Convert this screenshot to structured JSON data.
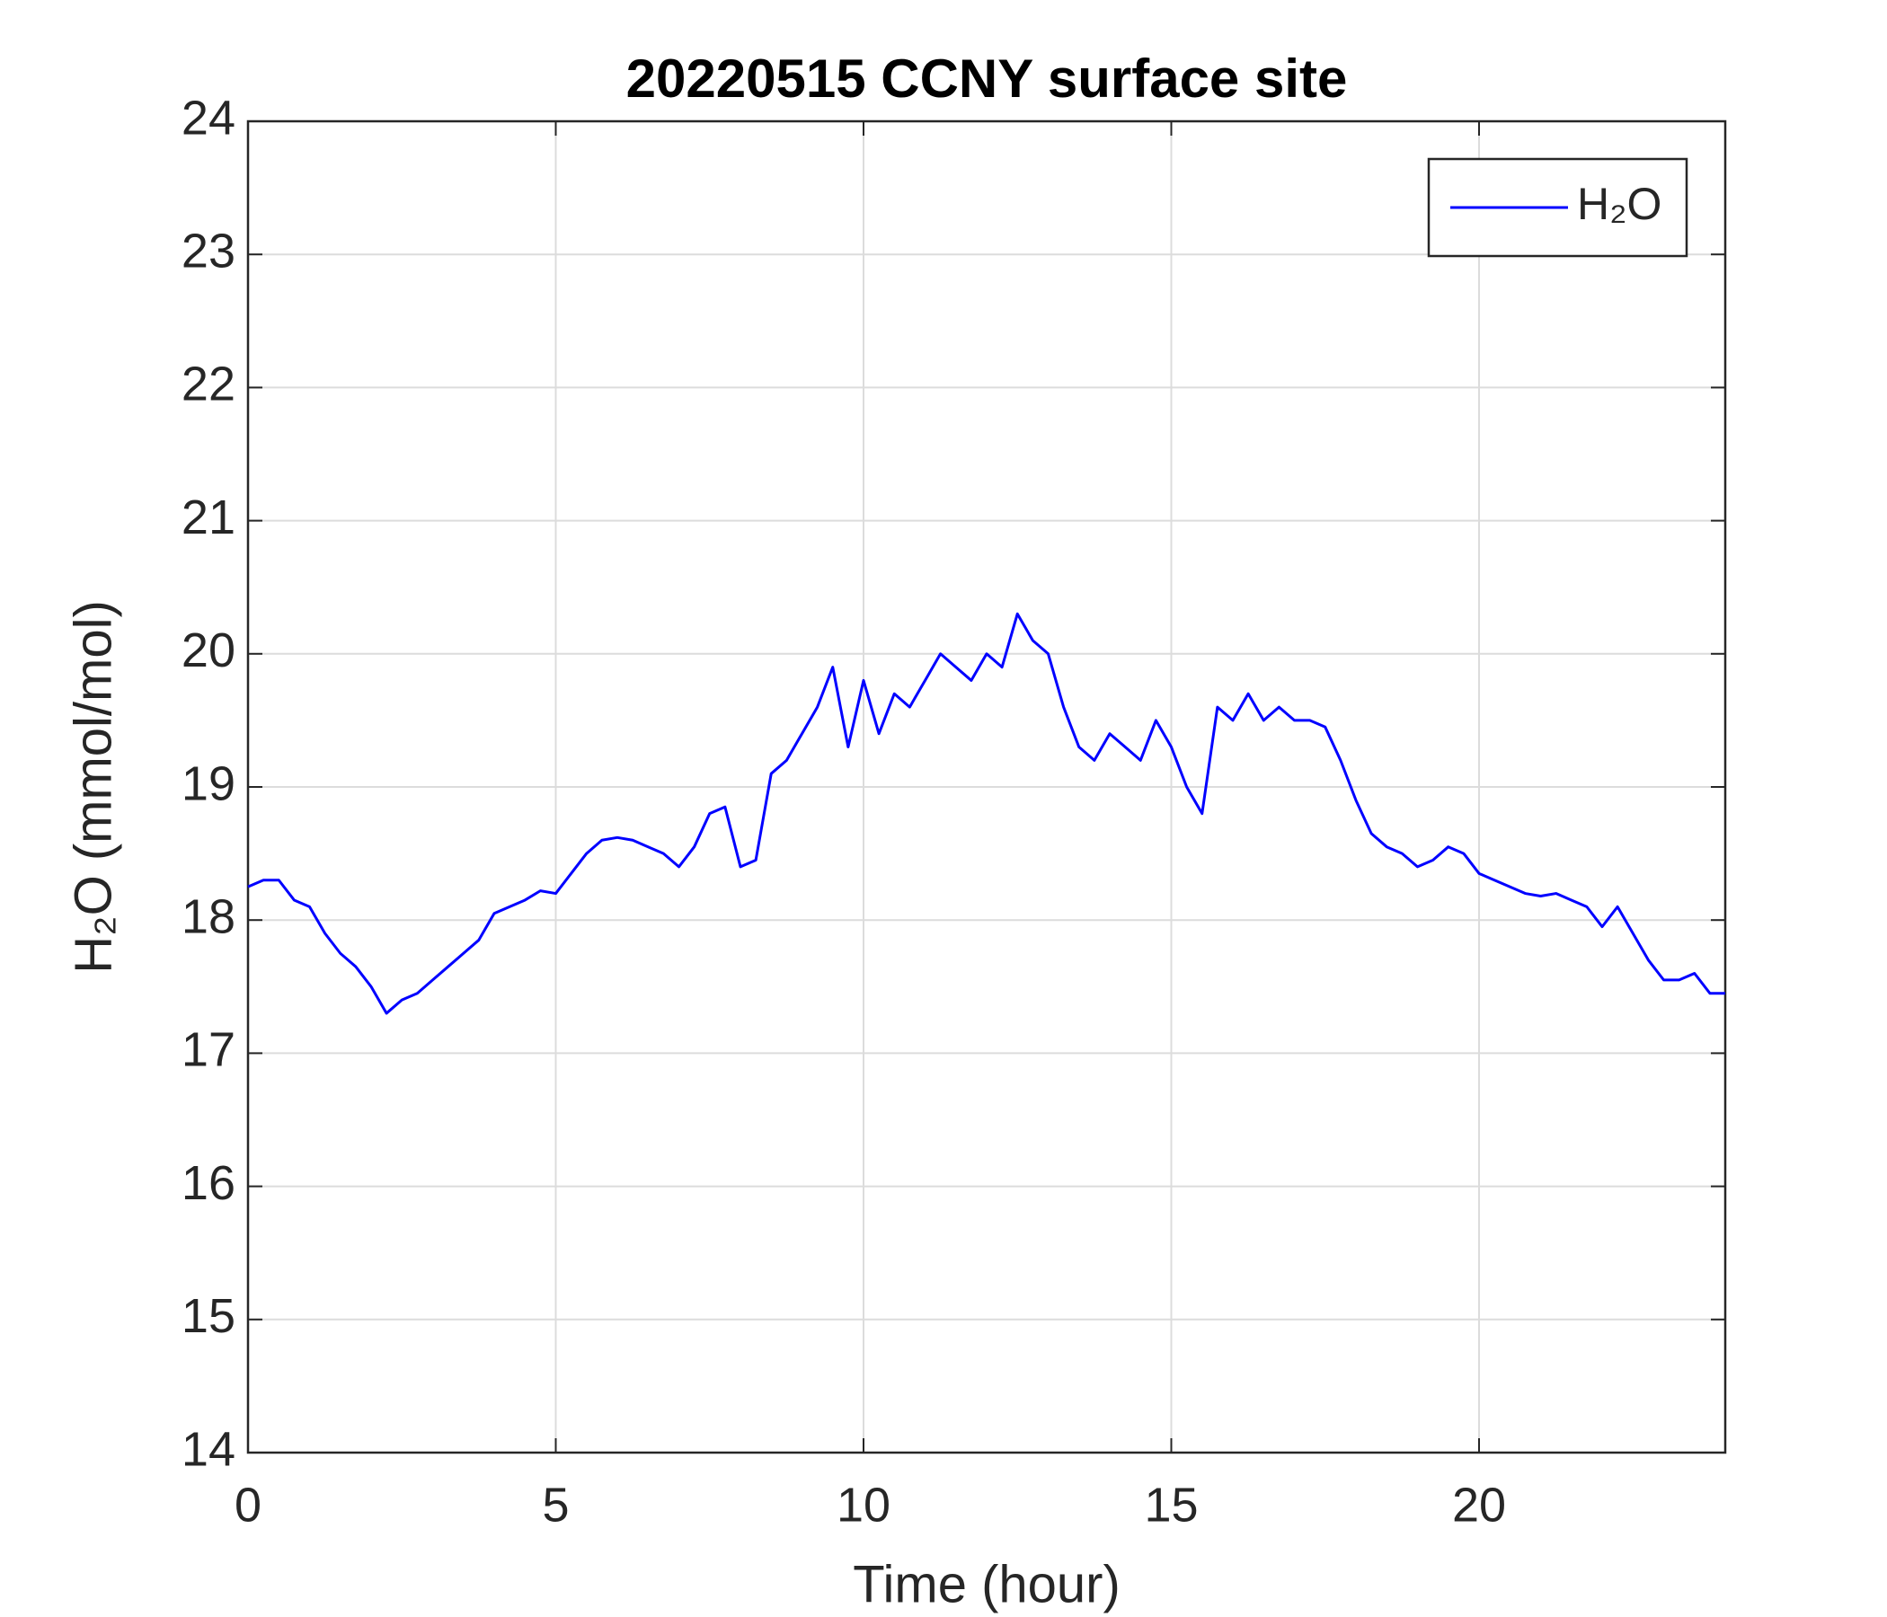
{
  "chart_data": {
    "type": "line",
    "title": "20220515 CCNY surface site",
    "xlabel": "Time (hour)",
    "ylabel": "H₂O (mmol/mol)",
    "x": [
      0,
      0.25,
      0.5,
      0.75,
      1,
      1.25,
      1.5,
      1.75,
      2,
      2.25,
      2.5,
      2.75,
      3,
      3.25,
      3.5,
      3.75,
      4,
      4.25,
      4.5,
      4.75,
      5,
      5.25,
      5.5,
      5.75,
      6,
      6.25,
      6.5,
      6.75,
      7,
      7.25,
      7.5,
      7.75,
      8,
      8.25,
      8.5,
      8.75,
      9,
      9.25,
      9.5,
      9.75,
      10,
      10.25,
      10.5,
      10.75,
      11,
      11.25,
      11.5,
      11.75,
      12,
      12.25,
      12.5,
      12.75,
      13,
      13.25,
      13.5,
      13.75,
      14,
      14.25,
      14.5,
      14.75,
      15,
      15.25,
      15.5,
      15.75,
      16,
      16.25,
      16.5,
      16.75,
      17,
      17.25,
      17.5,
      17.75,
      18,
      18.25,
      18.5,
      18.75,
      19,
      19.25,
      19.5,
      19.75,
      20,
      20.25,
      20.5,
      20.75,
      21,
      21.25,
      21.5,
      21.75,
      22,
      22.25,
      22.5,
      22.75,
      23,
      23.25,
      23.5,
      23.75,
      24
    ],
    "series": [
      {
        "name": "H₂O",
        "color": "#0000ff",
        "values": [
          18.25,
          18.3,
          18.3,
          18.15,
          18.1,
          17.9,
          17.75,
          17.65,
          17.5,
          17.3,
          17.4,
          17.45,
          17.55,
          17.65,
          17.75,
          17.85,
          18.05,
          18.1,
          18.15,
          18.22,
          18.2,
          18.35,
          18.5,
          18.6,
          18.62,
          18.6,
          18.55,
          18.5,
          18.4,
          18.55,
          18.8,
          18.85,
          18.4,
          18.45,
          19.1,
          19.2,
          19.4,
          19.6,
          19.9,
          19.3,
          19.8,
          19.4,
          19.7,
          19.6,
          19.8,
          20.0,
          19.9,
          19.8,
          20.0,
          19.9,
          20.3,
          20.1,
          20.0,
          19.6,
          19.3,
          19.2,
          19.4,
          19.3,
          19.2,
          19.5,
          19.3,
          19.0,
          18.8,
          19.6,
          19.5,
          19.7,
          19.5,
          19.6,
          19.5,
          19.5,
          19.45,
          19.2,
          18.9,
          18.65,
          18.55,
          18.5,
          18.4,
          18.45,
          18.55,
          18.5,
          18.35,
          18.3,
          18.25,
          18.2,
          18.18,
          18.2,
          18.15,
          18.1,
          17.95,
          18.1,
          17.9,
          17.7,
          17.55,
          17.55,
          17.6,
          17.45,
          17.45
        ]
      }
    ],
    "xlim": [
      0,
      24
    ],
    "xticks": [
      0,
      5,
      10,
      15,
      20
    ],
    "ylim": [
      14,
      24
    ],
    "yticks": [
      14,
      15,
      16,
      17,
      18,
      19,
      20,
      21,
      22,
      23,
      24
    ],
    "grid": true,
    "legend_position": "top-right"
  }
}
